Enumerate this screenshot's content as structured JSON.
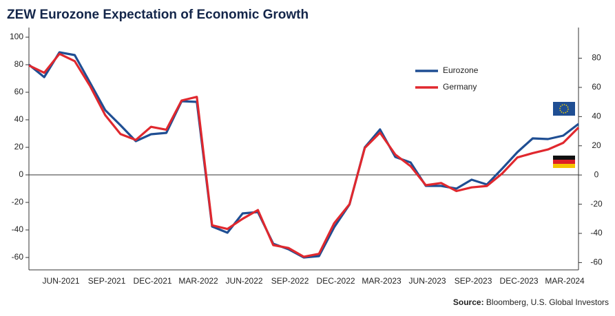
{
  "chart_data": {
    "type": "line",
    "title": "ZEW Eurozone Expectation of Economic Growth",
    "categories": [
      null,
      null,
      null,
      "JUN-2021",
      null,
      null,
      "SEP-2021",
      null,
      null,
      "DEC-2021",
      null,
      null,
      "MAR-2022",
      null,
      null,
      "JUN-2022",
      null,
      null,
      "SEP-2022",
      null,
      null,
      "DEC-2022",
      null,
      null,
      "MAR-2023",
      null,
      null,
      "JUN-2023",
      null,
      null,
      "SEP-2023",
      null,
      null,
      "DEC-2023",
      null,
      null,
      "MAR-2024"
    ],
    "series": [
      {
        "name": "Eurozone",
        "color": "#1f4e93",
        "axis": "y",
        "values": [
          80,
          71,
          89,
          87,
          67,
          47,
          36,
          24.5,
          29.5,
          30.5,
          53.5,
          53,
          -37.5,
          -42,
          -28,
          -27,
          -50,
          -54,
          -60,
          -59,
          -38,
          -21.5,
          20,
          33,
          13,
          9,
          -8,
          -8,
          -10,
          -3.5,
          -7,
          4.5,
          16.5,
          26.5,
          26,
          28.5,
          37
        ]
      },
      {
        "name": "Germany",
        "color": "#e0282e",
        "axis": "y2",
        "values": [
          75,
          70,
          83,
          78,
          61,
          41,
          28,
          24,
          33,
          31,
          51,
          53.5,
          -34.5,
          -37,
          -30,
          -24,
          -48,
          -50,
          -56,
          -54,
          -33,
          -20,
          18.5,
          29,
          14,
          6,
          -7,
          -5.5,
          -11,
          -8.5,
          -7.5,
          1,
          12,
          15,
          17.5,
          22,
          32.5
        ]
      }
    ],
    "ylim": [
      -69,
      107
    ],
    "yticks": [
      -60,
      -40,
      -20,
      0,
      20,
      40,
      60,
      80,
      100
    ],
    "y2lim": [
      -65,
      101
    ],
    "y2ticks": [
      -60,
      -40,
      -20,
      0,
      20,
      40,
      60,
      80
    ],
    "legend": "upper right",
    "source_label": "Source:",
    "source": "Bloomberg, U.S. Global Investors"
  }
}
